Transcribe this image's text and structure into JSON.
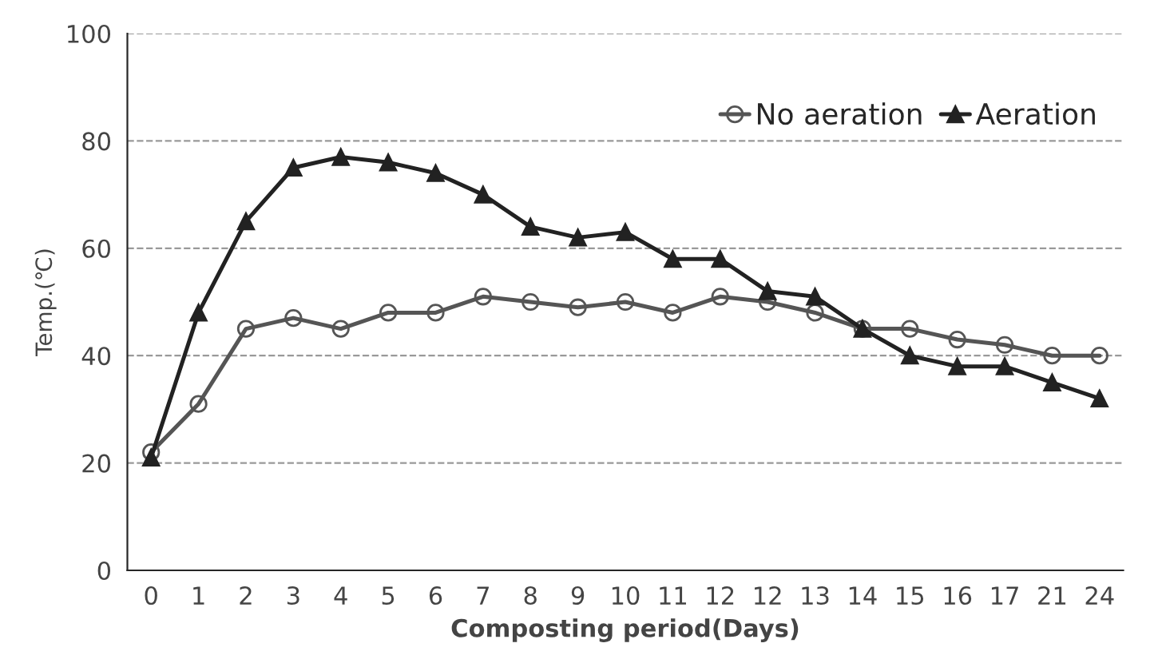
{
  "chart_data": {
    "type": "line",
    "xlabel": "Composting period(Days)",
    "ylabel": "Temp.(℃)",
    "categories": [
      "0",
      "1",
      "2",
      "3",
      "4",
      "5",
      "6",
      "7",
      "8",
      "9",
      "10",
      "11",
      "12",
      "12",
      "13",
      "14",
      "15",
      "16",
      "17",
      "21",
      "24"
    ],
    "series": [
      {
        "name": "No aeration",
        "color": "#555555",
        "marker": "circle",
        "values": [
          22,
          31,
          45,
          47,
          45,
          48,
          48,
          51,
          50,
          49,
          50,
          48,
          51,
          50,
          48,
          45,
          45,
          43,
          42,
          40,
          40
        ]
      },
      {
        "name": "Aeration",
        "color": "#222222",
        "marker": "triangle",
        "values": [
          21,
          48,
          65,
          75,
          77,
          76,
          74,
          70,
          64,
          62,
          63,
          58,
          58,
          52,
          51,
          45,
          40,
          38,
          38,
          35,
          32
        ]
      }
    ],
    "ylim": [
      0,
      100
    ],
    "yticks": [
      0,
      20,
      40,
      60,
      80,
      100
    ],
    "grid": "y",
    "legend": "top right",
    "line_style": "solid"
  }
}
